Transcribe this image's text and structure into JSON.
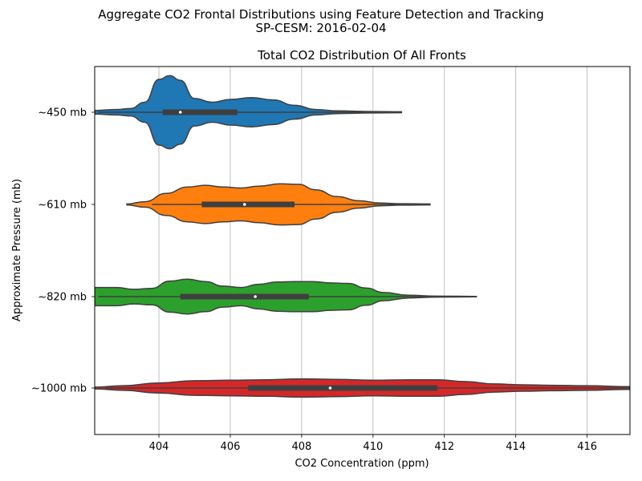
{
  "figure": {
    "suptitle_line1": "Aggregate CO2 Frontal Distributions using Feature Detection and Tracking",
    "suptitle_line2": "SP-CESM: 2016-02-04"
  },
  "chart_data": {
    "type": "violin",
    "orientation": "horizontal",
    "title": "Total CO2 Distribution Of All Fronts",
    "xlabel": "CO2 Concentration (ppm)",
    "ylabel": "Approximate Pressure (mb)",
    "xlim": [
      402.2,
      417.2
    ],
    "xticks": [
      404,
      406,
      408,
      410,
      412,
      414,
      416
    ],
    "grid": "vertical",
    "categories": [
      "~450 mb",
      "~610 mb",
      "~820 mb",
      "~1000 mb"
    ],
    "series": [
      {
        "category": "~450 mb",
        "color": "#1f77b4",
        "whisker": [
          402.3,
          410.8
        ],
        "q1": 404.1,
        "median": 404.6,
        "q3": 406.2,
        "profile": [
          [
            402.2,
            0.04
          ],
          [
            402.8,
            0.06
          ],
          [
            403.2,
            0.08
          ],
          [
            403.6,
            0.22
          ],
          [
            404.0,
            0.72
          ],
          [
            404.3,
            0.8
          ],
          [
            404.6,
            0.7
          ],
          [
            405.0,
            0.3
          ],
          [
            405.5,
            0.22
          ],
          [
            406.0,
            0.28
          ],
          [
            406.6,
            0.32
          ],
          [
            407.2,
            0.27
          ],
          [
            407.8,
            0.15
          ],
          [
            408.4,
            0.06
          ],
          [
            409.0,
            0.03
          ],
          [
            410.0,
            0.015
          ],
          [
            410.8,
            0.01
          ]
        ]
      },
      {
        "category": "~610 mb",
        "color": "#ff7f0e",
        "whisker": [
          403.8,
          411.5
        ],
        "q1": 405.2,
        "median": 406.4,
        "q3": 407.8,
        "profile": [
          [
            403.1,
            0.01
          ],
          [
            403.6,
            0.06
          ],
          [
            404.2,
            0.24
          ],
          [
            404.8,
            0.38
          ],
          [
            405.3,
            0.42
          ],
          [
            405.8,
            0.38
          ],
          [
            406.3,
            0.36
          ],
          [
            406.8,
            0.4
          ],
          [
            407.4,
            0.45
          ],
          [
            407.9,
            0.44
          ],
          [
            408.4,
            0.32
          ],
          [
            409.0,
            0.17
          ],
          [
            409.6,
            0.08
          ],
          [
            410.2,
            0.03
          ],
          [
            410.8,
            0.015
          ],
          [
            411.6,
            0.01
          ]
        ]
      },
      {
        "category": "~820 mb",
        "color": "#2ca02c",
        "whisker": [
          402.3,
          412.8
        ],
        "q1": 404.6,
        "median": 406.7,
        "q3": 408.2,
        "profile": [
          [
            402.2,
            0.2
          ],
          [
            402.8,
            0.2
          ],
          [
            403.3,
            0.16
          ],
          [
            403.8,
            0.18
          ],
          [
            404.3,
            0.34
          ],
          [
            404.8,
            0.38
          ],
          [
            405.3,
            0.33
          ],
          [
            405.8,
            0.23
          ],
          [
            406.3,
            0.2
          ],
          [
            406.8,
            0.27
          ],
          [
            407.3,
            0.32
          ],
          [
            407.8,
            0.33
          ],
          [
            408.3,
            0.33
          ],
          [
            408.8,
            0.3
          ],
          [
            409.3,
            0.29
          ],
          [
            409.8,
            0.19
          ],
          [
            410.3,
            0.09
          ],
          [
            411.0,
            0.03
          ],
          [
            411.8,
            0.01
          ],
          [
            412.9,
            0.005
          ]
        ]
      },
      {
        "category": "~1000 mb",
        "color": "#d62728",
        "whisker": [
          402.5,
          417.2
        ],
        "q1": 406.5,
        "median": 408.8,
        "q3": 411.8,
        "profile": [
          [
            402.2,
            0.02
          ],
          [
            403.0,
            0.05
          ],
          [
            404.0,
            0.11
          ],
          [
            405.0,
            0.16
          ],
          [
            406.0,
            0.17
          ],
          [
            407.0,
            0.18
          ],
          [
            408.0,
            0.2
          ],
          [
            409.0,
            0.19
          ],
          [
            410.0,
            0.17
          ],
          [
            411.0,
            0.18
          ],
          [
            411.8,
            0.18
          ],
          [
            412.6,
            0.14
          ],
          [
            413.4,
            0.09
          ],
          [
            414.2,
            0.07
          ],
          [
            415.0,
            0.06
          ],
          [
            416.0,
            0.05
          ],
          [
            417.2,
            0.03
          ]
        ]
      }
    ]
  }
}
